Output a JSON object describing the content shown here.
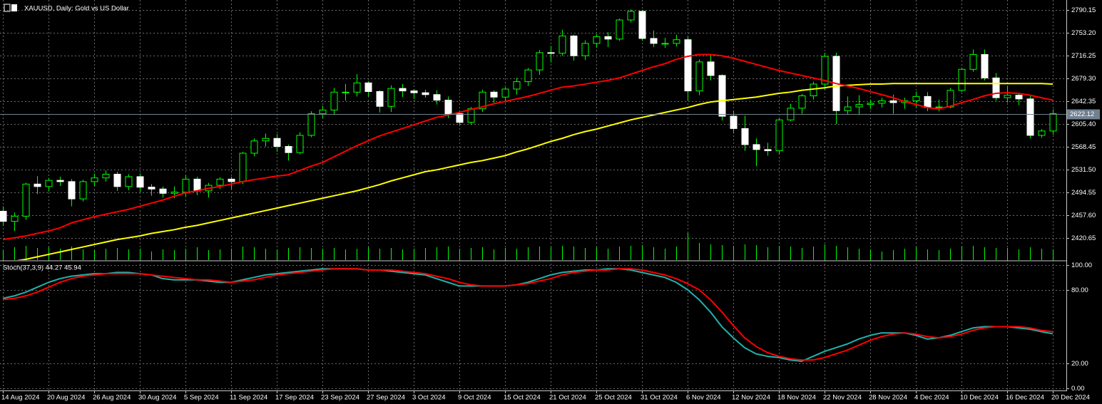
{
  "chart_data": [
    {
      "type": "candlestick",
      "title": "XAUUSD, Daily: Gold vs US Dollar",
      "categories": [
        "14 Aug 2024",
        null,
        null,
        null,
        "20 Aug 2024",
        null,
        null,
        null,
        "26 Aug 2024",
        null,
        null,
        null,
        "30 Aug 2024",
        null,
        null,
        null,
        "5 Sep 2024",
        null,
        null,
        null,
        "11 Sep 2024",
        null,
        null,
        null,
        "17 Sep 2024",
        null,
        null,
        null,
        "23 Sep 2024",
        null,
        null,
        null,
        "27 Sep 2024",
        null,
        null,
        null,
        "3 Oct 2024",
        null,
        null,
        null,
        "9 Oct 2024",
        null,
        null,
        null,
        "15 Oct 2024",
        null,
        null,
        null,
        "21 Oct 2024",
        null,
        null,
        null,
        "25 Oct 2024",
        null,
        null,
        null,
        "31 Oct 2024",
        null,
        null,
        null,
        "6 Nov 2024",
        null,
        null,
        null,
        "12 Nov 2024",
        null,
        null,
        null,
        "18 Nov 2024",
        null,
        null,
        null,
        "22 Nov 2024",
        null,
        null,
        null,
        "28 Nov 2024",
        null,
        null,
        null,
        "4 Dec 2024",
        null,
        null,
        null,
        "10 Dec 2024",
        null,
        null,
        null,
        "16 Dec 2024",
        null,
        null,
        null,
        "20 Dec 2024"
      ],
      "open": [
        2464,
        2447.6,
        2456,
        2508,
        2504,
        2514,
        2512,
        2484,
        2512,
        2518,
        2524,
        2504,
        2520,
        2503,
        2500,
        2493,
        2495,
        2516,
        2497,
        2506,
        2516,
        2512,
        2558,
        2578,
        2582,
        2569,
        2559,
        2587,
        2622,
        2628,
        2657,
        2657,
        2672,
        2658,
        2634,
        2663,
        2659,
        2656,
        2653,
        2644,
        2622,
        2608,
        2630,
        2657,
        2649,
        2662,
        2674,
        2693,
        2721,
        2720,
        2748,
        2716,
        2736,
        2747,
        2743,
        2774,
        2788,
        2744,
        2736,
        2736,
        2742,
        2659,
        2706,
        2684,
        2618,
        2598,
        2572,
        2564,
        2562,
        2612,
        2631,
        2651,
        2670,
        2715,
        2627,
        2633,
        2637,
        2639,
        2643,
        2640,
        2643,
        2650,
        2632,
        2633,
        2660,
        2694,
        2718,
        2680,
        2648,
        2652,
        2646,
        2587,
        2594
      ],
      "high": [
        2472,
        2462,
        2510,
        2521,
        2518,
        2520,
        2516,
        2515,
        2525,
        2530,
        2528,
        2524,
        2525,
        2508,
        2504,
        2504,
        2523,
        2520,
        2510,
        2519,
        2520,
        2560,
        2582,
        2590,
        2589,
        2572,
        2592,
        2626,
        2635,
        2664,
        2670,
        2686,
        2675,
        2660,
        2668,
        2670,
        2662,
        2661,
        2660,
        2650,
        2626,
        2633,
        2661,
        2660,
        2665,
        2680,
        2696,
        2725,
        2732,
        2758,
        2750,
        2741,
        2751,
        2754,
        2776,
        2791,
        2790,
        2757,
        2745,
        2750,
        2747,
        2710,
        2718,
        2686,
        2626,
        2619,
        2582,
        2575,
        2614,
        2638,
        2654,
        2674,
        2721,
        2721,
        2650,
        2652,
        2645,
        2648,
        2653,
        2648,
        2658,
        2657,
        2645,
        2664,
        2696,
        2726,
        2726,
        2688,
        2667,
        2656,
        2651,
        2597,
        2629
      ],
      "low": [
        2440,
        2432,
        2450,
        2492,
        2496,
        2505,
        2472,
        2480,
        2505,
        2512,
        2497,
        2498,
        2495,
        2489,
        2486,
        2485,
        2488,
        2490,
        2486,
        2500,
        2500,
        2508,
        2553,
        2569,
        2560,
        2546,
        2556,
        2584,
        2615,
        2620,
        2643,
        2650,
        2650,
        2624,
        2625,
        2649,
        2646,
        2648,
        2637,
        2615,
        2604,
        2604,
        2625,
        2640,
        2640,
        2653,
        2667,
        2685,
        2705,
        2716,
        2708,
        2709,
        2729,
        2730,
        2740,
        2770,
        2740,
        2730,
        2729,
        2731,
        2643,
        2652,
        2676,
        2611,
        2590,
        2562,
        2537,
        2554,
        2556,
        2610,
        2622,
        2645,
        2661,
        2605,
        2621,
        2620,
        2630,
        2632,
        2622,
        2630,
        2632,
        2626,
        2626,
        2631,
        2657,
        2690,
        2676,
        2643,
        2640,
        2636,
        2582,
        2583,
        2588
      ],
      "close": [
        2447.6,
        2456,
        2508,
        2504,
        2514,
        2512,
        2484,
        2512,
        2518,
        2524,
        2504,
        2520,
        2503,
        2500,
        2493,
        2495,
        2516,
        2497,
        2506,
        2516,
        2512,
        2558,
        2578,
        2582,
        2569,
        2559,
        2587,
        2622,
        2628,
        2657,
        2657,
        2672,
        2658,
        2634,
        2663,
        2659,
        2656,
        2653,
        2644,
        2622,
        2608,
        2630,
        2657,
        2649,
        2662,
        2674,
        2693,
        2721,
        2720,
        2748,
        2716,
        2736,
        2747,
        2743,
        2774,
        2788,
        2744,
        2736,
        2736,
        2742,
        2659,
        2706,
        2684,
        2618,
        2598,
        2572,
        2564,
        2562,
        2612,
        2631,
        2651,
        2670,
        2715,
        2627,
        2633,
        2637,
        2639,
        2643,
        2640,
        2643,
        2650,
        2632,
        2633,
        2660,
        2694,
        2718,
        2680,
        2648,
        2652,
        2646,
        2587,
        2594,
        2622.12
      ],
      "volume": [
        14,
        18,
        20,
        17,
        18,
        16,
        19,
        15,
        14,
        16,
        17,
        15,
        16,
        12,
        15,
        14,
        16,
        18,
        14,
        15,
        16,
        19,
        18,
        16,
        15,
        17,
        18,
        17,
        16,
        17,
        15,
        16,
        18,
        16,
        17,
        15,
        16,
        17,
        18,
        19,
        16,
        17,
        18,
        15,
        17,
        16,
        18,
        19,
        18,
        20,
        19,
        17,
        18,
        16,
        19,
        20,
        21,
        18,
        16,
        19,
        38,
        24,
        22,
        21,
        20,
        22,
        21,
        18,
        20,
        19,
        17,
        19,
        22,
        20,
        18,
        16,
        15,
        12,
        14,
        16,
        18,
        15,
        14,
        16,
        19,
        20,
        18,
        17,
        17,
        15,
        18,
        16,
        15
      ],
      "series": [
        {
          "color": "#ffff00",
          "values": [
            2380,
            2383,
            2386,
            2390,
            2394,
            2398,
            2402,
            2406,
            2410,
            2414,
            2418,
            2421,
            2424,
            2428,
            2431,
            2434,
            2438,
            2441,
            2445,
            2449,
            2453,
            2457,
            2461,
            2465,
            2469,
            2473,
            2477,
            2481,
            2485,
            2489,
            2493,
            2497,
            2502,
            2507,
            2513,
            2518,
            2523,
            2528,
            2531,
            2535,
            2539,
            2543,
            2546,
            2550,
            2554,
            2560,
            2565,
            2571,
            2577,
            2582,
            2588,
            2593,
            2597,
            2602,
            2607,
            2612,
            2616,
            2620,
            2624,
            2628,
            2632,
            2637,
            2641,
            2643,
            2645,
            2647,
            2649,
            2652,
            2655,
            2657,
            2660,
            2662,
            2664,
            2667,
            2668,
            2669,
            2670,
            2670,
            2671,
            2671,
            2671,
            2671,
            2671,
            2671,
            2671,
            2671,
            2671,
            2671,
            2671,
            2671,
            2671,
            2671,
            2670
          ]
        },
        {
          "color": "#ff0000",
          "values": [
            2418,
            2421,
            2424,
            2428,
            2432,
            2437,
            2445,
            2450,
            2455,
            2459,
            2463,
            2467,
            2472,
            2477,
            2482,
            2488,
            2494,
            2497,
            2501,
            2504,
            2508,
            2512,
            2515,
            2518,
            2521,
            2523,
            2530,
            2537,
            2543,
            2552,
            2561,
            2570,
            2578,
            2586,
            2592,
            2598,
            2604,
            2610,
            2616,
            2620,
            2624,
            2629,
            2633,
            2638,
            2642,
            2646,
            2650,
            2655,
            2660,
            2665,
            2667,
            2670,
            2673,
            2676,
            2680,
            2686,
            2692,
            2698,
            2703,
            2710,
            2715,
            2718,
            2718,
            2716,
            2712,
            2707,
            2702,
            2697,
            2692,
            2688,
            2684,
            2680,
            2676,
            2671,
            2667,
            2663,
            2658,
            2653,
            2648,
            2642,
            2637,
            2632,
            2630,
            2634,
            2640,
            2645,
            2651,
            2655,
            2656,
            2655,
            2652,
            2648,
            2644
          ]
        }
      ],
      "bull_color": "#000000",
      "bear_color": "#ffffff",
      "wick_color": "#00ff00",
      "volume_color": "#00ff00",
      "last_color": "#708090",
      "ylim": [
        2384.84,
        2806.32
      ],
      "yticks": [
        2790.15,
        {
          "value": 2753.2,
          "label": "2753.20"
        },
        2716.25,
        {
          "value": 2679.3,
          "label": "2679.30"
        },
        2642.35,
        {
          "value": 2605.4,
          "label": "2605.40"
        },
        2568.45,
        {
          "value": 2531.5,
          "label": "2531.50"
        },
        2494.55,
        {
          "value": 2457.6,
          "label": "2457.60"
        },
        2420.65
      ],
      "grid": true
    },
    {
      "type": "line",
      "title": "Stoch(37,3,9) 44.27 45.94",
      "series": [
        {
          "color": "#20b2aa",
          "values": [
            73,
            75,
            78,
            82,
            86,
            89,
            91,
            92,
            93,
            93,
            94,
            94,
            93,
            92,
            89,
            88,
            88,
            88,
            87,
            86,
            86,
            88,
            90,
            92,
            93,
            94,
            95,
            96,
            97,
            97,
            97,
            97,
            96,
            96,
            95,
            94,
            93,
            92,
            89,
            86,
            83,
            83,
            83,
            83,
            83,
            84,
            86,
            89,
            92,
            94,
            95,
            96,
            96,
            97,
            97,
            96,
            94,
            92,
            90,
            86,
            80,
            72,
            62,
            50,
            41,
            33,
            28,
            26,
            25,
            23,
            22,
            26,
            30,
            33,
            36,
            40,
            43,
            45,
            45,
            45,
            43,
            40,
            41,
            43,
            46,
            49,
            50,
            50,
            50,
            49,
            48,
            46,
            44.27
          ]
        },
        {
          "color": "#ff0000",
          "values": [
            72,
            73,
            75,
            78,
            82,
            86,
            89,
            91,
            92,
            93,
            93,
            93,
            93,
            92,
            91,
            90,
            89,
            88,
            88,
            87,
            86,
            87,
            88,
            90,
            92,
            93,
            94,
            95,
            96,
            97,
            97,
            97,
            96,
            96,
            96,
            95,
            94,
            93,
            91,
            89,
            86,
            84,
            83,
            83,
            83,
            84,
            85,
            87,
            89,
            92,
            94,
            95,
            96,
            96,
            97,
            97,
            96,
            94,
            92,
            89,
            85,
            80,
            72,
            62,
            51,
            41,
            34,
            29,
            26,
            24,
            23,
            23,
            25,
            28,
            31,
            35,
            39,
            42,
            44,
            45,
            44,
            42,
            41,
            42,
            44,
            47,
            49,
            50,
            50,
            50,
            49,
            47,
            45.94
          ]
        }
      ],
      "ylim": [
        -1.7,
        102.9
      ],
      "yticks": [
        {
          "value": 0,
          "label": "0.00"
        },
        {
          "value": 20,
          "label": "20.00"
        },
        {
          "value": 80,
          "label": "80.00"
        },
        {
          "value": 100,
          "label": "100.00"
        }
      ],
      "grid": true
    }
  ]
}
